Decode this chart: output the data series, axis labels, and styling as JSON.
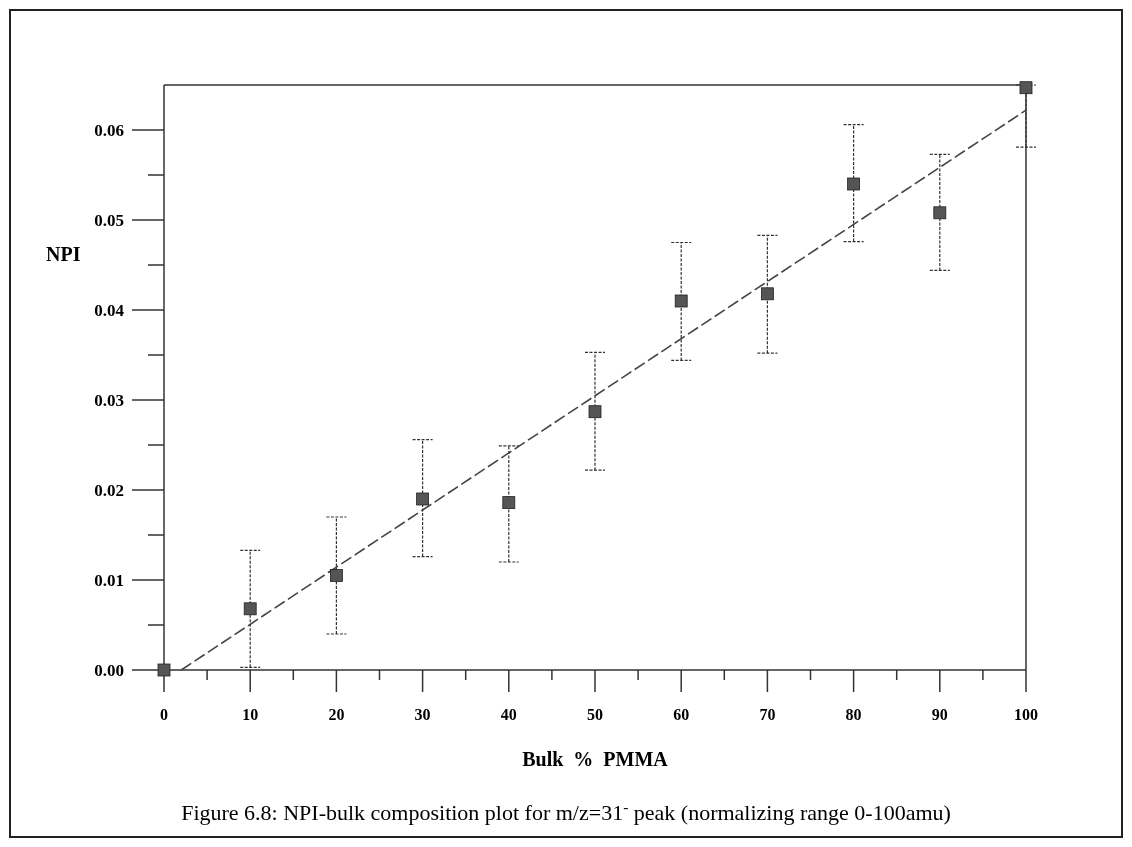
{
  "chart_data": {
    "type": "scatter",
    "xlabel": "Bulk  %  PMMA",
    "ylabel": "NPI",
    "annotations": [
      "Figure 6.8:  NPI-bulk composition plot for m/z=31$^{-}$ peak (normalizing range 0-100amu)"
    ],
    "xlim": [
      0,
      100
    ],
    "ylim": [
      0,
      0.065
    ],
    "xticks": [
      0,
      {
        "value": 5,
        "label": null
      },
      10,
      {
        "value": 15,
        "label": null
      },
      20,
      {
        "value": 25,
        "label": null
      },
      30,
      {
        "value": 35,
        "label": null
      },
      40,
      {
        "value": 45,
        "label": null
      },
      50,
      {
        "value": 55,
        "label": null
      },
      60,
      {
        "value": 65,
        "label": null
      },
      70,
      {
        "value": 75,
        "label": null
      },
      80,
      {
        "value": 85,
        "label": null
      },
      90,
      {
        "value": 95,
        "label": null
      },
      100
    ],
    "yticks": [
      {
        "value": 0,
        "label": "0.00"
      },
      {
        "value": 0.005,
        "label": null
      },
      {
        "value": 0.01,
        "label": "0.01"
      },
      {
        "value": 0.015,
        "label": null
      },
      {
        "value": 0.02,
        "label": "0.02"
      },
      {
        "value": 0.025,
        "label": null
      },
      {
        "value": 0.03,
        "label": "0.03"
      },
      {
        "value": 0.035,
        "label": null
      },
      {
        "value": 0.04,
        "label": "0.04"
      },
      {
        "value": 0.045,
        "label": null
      },
      {
        "value": 0.05,
        "label": "0.05"
      },
      {
        "value": 0.055,
        "label": null
      },
      {
        "value": 0.06,
        "label": "0.06"
      }
    ],
    "grid": false,
    "series": [
      {
        "color": "#555555",
        "marker": "square",
        "x": [
          0,
          10,
          20,
          30,
          40,
          50,
          60,
          70,
          80,
          90,
          100
        ],
        "values": [
          0,
          0.0068,
          0.0105,
          0.019,
          0.0186,
          0.0287,
          0.041,
          0.0418,
          0.054,
          0.0508,
          0.0647
        ],
        "errors": [
          null,
          [
            0.0003,
            0.0133
          ],
          [
            0.004,
            0.017
          ],
          [
            0.0126,
            0.0256
          ],
          [
            0.012,
            0.0249
          ],
          [
            0.0222,
            0.0353
          ],
          [
            0.0344,
            0.0475
          ],
          [
            0.0352,
            0.0483
          ],
          [
            0.0476,
            0.0606
          ],
          [
            0.0444,
            0.0573
          ],
          [
            0.0581,
            0.065
          ]
        ]
      },
      {
        "type": "line",
        "color": "#444444",
        "line_style": "dashed",
        "marker": "none",
        "x": [
          2,
          100
        ],
        "values": [
          0,
          0.0622
        ]
      }
    ]
  }
}
